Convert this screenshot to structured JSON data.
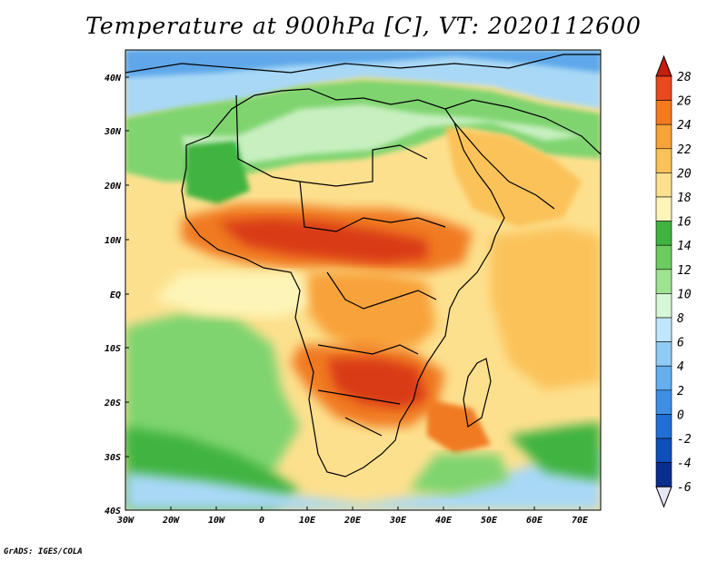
{
  "title": "Temperature at 900hPa [C], VT: 2020112600",
  "credit": "GrADS: IGES/COLA",
  "axes": {
    "lon_ticks": [
      "30W",
      "20W",
      "10W",
      "0",
      "10E",
      "20E",
      "30E",
      "40E",
      "50E",
      "60E",
      "70E"
    ],
    "lat_ticks": [
      "40N",
      "30N",
      "20N",
      "10N",
      "EQ",
      "10S",
      "20S",
      "30S",
      "40S"
    ]
  },
  "colorbar": {
    "labels": [
      "28",
      "26",
      "24",
      "22",
      "20",
      "18",
      "16",
      "14",
      "12",
      "10",
      "8",
      "6",
      "4",
      "2",
      "0",
      "-2",
      "-4",
      "-6"
    ],
    "colors": [
      "#c41e0e",
      "#e84a1e",
      "#f5791f",
      "#f8a23a",
      "#fbc25a",
      "#fde08e",
      "#fdf5b8",
      "#3fb33f",
      "#6ccc5f",
      "#9fe28f",
      "#d6f8d8",
      "#bfe6fb",
      "#8fccf5",
      "#63aff0",
      "#3d8fe6",
      "#1f6fd6",
      "#0f4fb9",
      "#0a2e90",
      "#081e6c",
      "#e6e6fb"
    ]
  },
  "palette": {
    "very_warm": "#d93a14",
    "warm": "#f07a22",
    "orange": "#f8a23a",
    "light_orange": "#fbc25a",
    "pale": "#fde08e",
    "green": "#3fb33f",
    "light_green": "#7fd46f",
    "pale_green": "#c7efc0",
    "light_blue": "#a8d8f6",
    "blue": "#5ea7ea",
    "border": "#000000"
  }
}
